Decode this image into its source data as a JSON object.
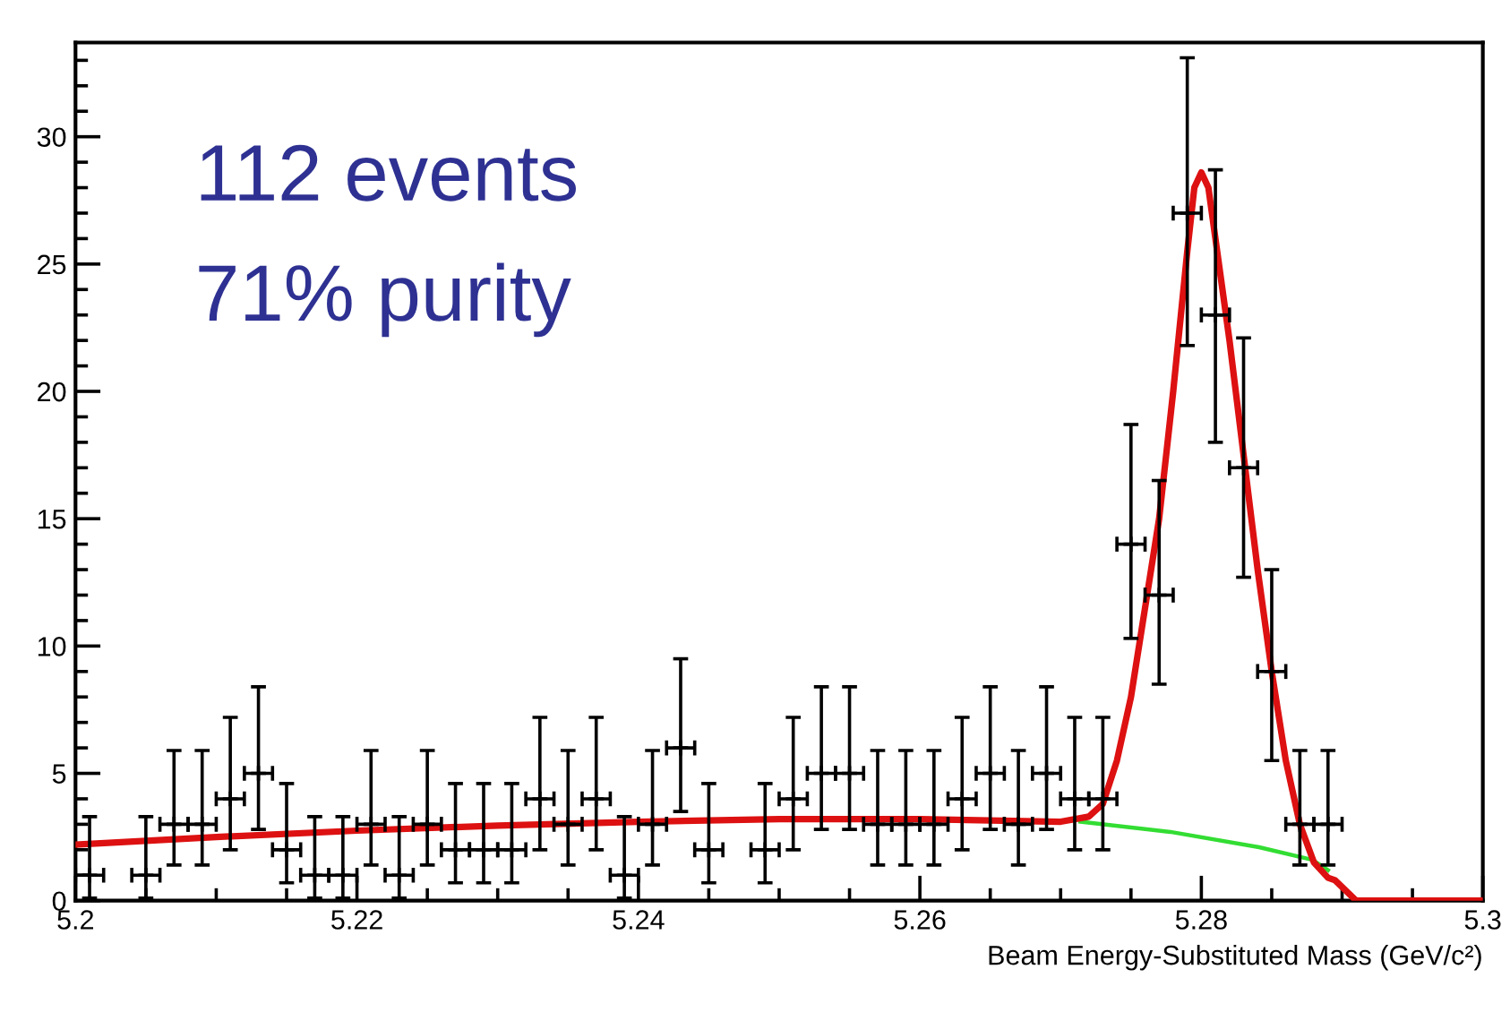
{
  "chart_data": {
    "type": "scatter",
    "xlabel": "Beam Energy-Substituted Mass (GeV/c²)",
    "annotations": [
      "112 events",
      "71% purity"
    ],
    "xlim": [
      5.2,
      5.3
    ],
    "xticks": [
      5.2,
      {
        "value": 5.205,
        "label": null
      },
      {
        "value": 5.21,
        "label": null
      },
      {
        "value": 5.215,
        "label": null
      },
      5.22,
      {
        "value": 5.225,
        "label": null
      },
      {
        "value": 5.23,
        "label": null
      },
      {
        "value": 5.235,
        "label": null
      },
      5.24,
      {
        "value": 5.245,
        "label": null
      },
      {
        "value": 5.25,
        "label": null
      },
      {
        "value": 5.255,
        "label": null
      },
      5.26,
      {
        "value": 5.265,
        "label": null
      },
      {
        "value": 5.27,
        "label": null
      },
      {
        "value": 5.275,
        "label": null
      },
      5.28,
      {
        "value": 5.285,
        "label": null
      },
      {
        "value": 5.29,
        "label": null
      },
      {
        "value": 5.295,
        "label": null
      },
      5.3
    ],
    "ylim": [
      0,
      33.7
    ],
    "yticks": [
      0,
      {
        "value": 1,
        "label": null
      },
      {
        "value": 2,
        "label": null
      },
      {
        "value": 3,
        "label": null
      },
      {
        "value": 4,
        "label": null
      },
      5,
      {
        "value": 6,
        "label": null
      },
      {
        "value": 7,
        "label": null
      },
      {
        "value": 8,
        "label": null
      },
      {
        "value": 9,
        "label": null
      },
      10,
      {
        "value": 11,
        "label": null
      },
      {
        "value": 12,
        "label": null
      },
      {
        "value": 13,
        "label": null
      },
      {
        "value": 14,
        "label": null
      },
      15,
      {
        "value": 16,
        "label": null
      },
      {
        "value": 17,
        "label": null
      },
      {
        "value": 18,
        "label": null
      },
      {
        "value": 19,
        "label": null
      },
      20,
      {
        "value": 21,
        "label": null
      },
      {
        "value": 22,
        "label": null
      },
      {
        "value": 23,
        "label": null
      },
      {
        "value": 24,
        "label": null
      },
      25,
      {
        "value": 26,
        "label": null
      },
      {
        "value": 27,
        "label": null
      },
      {
        "value": 28,
        "label": null
      },
      {
        "value": 29,
        "label": null
      },
      30,
      {
        "value": 31,
        "label": null
      },
      {
        "value": 32,
        "label": null
      },
      {
        "value": 33,
        "label": null
      }
    ],
    "grid": false,
    "series": [
      {
        "marker": "cross",
        "color": "#000000",
        "x": [
          5.201,
          5.205,
          5.207,
          5.209,
          5.211,
          5.213,
          5.215,
          5.217,
          5.219,
          5.221,
          5.223,
          5.225,
          5.227,
          5.229,
          5.231,
          5.233,
          5.235,
          5.237,
          5.239,
          5.241,
          5.243,
          5.245,
          5.249,
          5.251,
          5.253,
          5.255,
          5.257,
          5.259,
          5.261,
          5.263,
          5.265,
          5.267,
          5.269,
          5.271,
          5.273,
          5.275,
          5.277,
          5.279,
          5.281,
          5.283,
          5.285,
          5.287,
          5.289
        ],
        "values": [
          1,
          1,
          3,
          3,
          4,
          5,
          2,
          1,
          1,
          3,
          1,
          3,
          2,
          2,
          2,
          4,
          3,
          4,
          1,
          3,
          6,
          2,
          2,
          4,
          5,
          5,
          3,
          3,
          3,
          4,
          5,
          3,
          5,
          4,
          4,
          14,
          12,
          27,
          23,
          17,
          9,
          3,
          3
        ],
        "errors": [
          [
            0.1,
            3.3
          ],
          [
            0.1,
            3.3
          ],
          [
            1.4,
            5.9
          ],
          [
            1.4,
            5.9
          ],
          [
            2.0,
            7.2
          ],
          [
            2.8,
            8.4
          ],
          [
            0.7,
            4.6
          ],
          [
            0.1,
            3.3
          ],
          [
            0.1,
            3.3
          ],
          [
            1.4,
            5.9
          ],
          [
            0.1,
            3.3
          ],
          [
            1.4,
            5.9
          ],
          [
            0.7,
            4.6
          ],
          [
            0.7,
            4.6
          ],
          [
            0.7,
            4.6
          ],
          [
            2.0,
            7.2
          ],
          [
            1.4,
            5.9
          ],
          [
            2.0,
            7.2
          ],
          [
            0.1,
            3.3
          ],
          [
            1.4,
            5.9
          ],
          [
            3.5,
            9.5
          ],
          [
            0.7,
            4.6
          ],
          [
            0.7,
            4.6
          ],
          [
            2.0,
            7.2
          ],
          [
            2.8,
            8.4
          ],
          [
            2.8,
            8.4
          ],
          [
            1.4,
            5.9
          ],
          [
            1.4,
            5.9
          ],
          [
            1.4,
            5.9
          ],
          [
            2.0,
            7.2
          ],
          [
            2.8,
            8.4
          ],
          [
            1.4,
            5.9
          ],
          [
            2.8,
            8.4
          ],
          [
            2.0,
            7.2
          ],
          [
            2.0,
            7.2
          ],
          [
            10.3,
            18.7
          ],
          [
            8.5,
            16.5
          ],
          [
            21.8,
            33.1
          ],
          [
            18.0,
            28.7
          ],
          [
            12.7,
            22.1
          ],
          [
            5.5,
            13.0
          ],
          [
            1.4,
            5.9
          ],
          [
            1.4,
            5.9
          ]
        ],
        "xerrors": [
          0.001,
          0.001,
          0.001,
          0.001,
          0.001,
          0.001,
          0.001,
          0.001,
          0.001,
          0.001,
          0.001,
          0.001,
          0.001,
          0.001,
          0.001,
          0.001,
          0.001,
          0.001,
          0.001,
          0.001,
          0.001,
          0.001,
          0.001,
          0.001,
          0.001,
          0.001,
          0.001,
          0.001,
          0.001,
          0.001,
          0.001,
          0.001,
          0.001,
          0.001,
          0.001,
          0.001,
          0.001,
          0.001,
          0.001,
          0.001,
          0.001,
          0.001,
          0.001
        ]
      },
      {
        "type": "line",
        "color": "#33dd33",
        "x": [
          5.2714,
          5.2778,
          5.2841,
          5.2879,
          5.289
        ],
        "values": [
          3.1,
          2.7,
          2.1,
          1.6,
          1.2
        ]
      },
      {
        "type": "line",
        "color": "#dd1111",
        "x": [
          5.2,
          5.21,
          5.22,
          5.23,
          5.24,
          5.25,
          5.26,
          5.27,
          5.272,
          5.273,
          5.274,
          5.275,
          5.276,
          5.277,
          5.278,
          5.279,
          5.2795,
          5.28,
          5.2805,
          5.281,
          5.282,
          5.283,
          5.284,
          5.285,
          5.286,
          5.287,
          5.288,
          5.289,
          5.2895,
          5.291,
          5.3
        ],
        "values": [
          2.2,
          2.5,
          2.75,
          2.95,
          3.1,
          3.2,
          3.2,
          3.1,
          3.3,
          3.8,
          5.5,
          8,
          11.5,
          15,
          20,
          25.5,
          28,
          28.6,
          28,
          26,
          22,
          17.5,
          13,
          9,
          5.5,
          3.0,
          1.5,
          0.9,
          0.8,
          0,
          0
        ]
      }
    ]
  }
}
